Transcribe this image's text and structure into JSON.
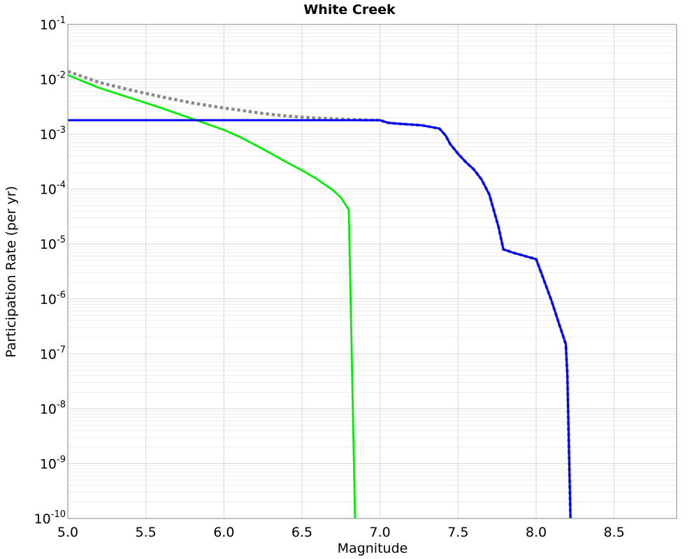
{
  "chart_data": {
    "type": "line",
    "title": "White Creek",
    "xlabel": "Magnitude",
    "ylabel": "Participation Rate (per yr)",
    "x_range": [
      5.0,
      8.9
    ],
    "y_scale": "log",
    "y_range": [
      1e-10,
      0.1
    ],
    "grid": {
      "x_major": true,
      "y_major": true,
      "y_minor": true,
      "legend": "none"
    },
    "x_ticks": [
      {
        "v": 5.0,
        "label": "5.0"
      },
      {
        "v": 5.5,
        "label": "5.5"
      },
      {
        "v": 6.0,
        "label": "6.0"
      },
      {
        "v": 6.5,
        "label": "6.5"
      },
      {
        "v": 7.0,
        "label": "7.0"
      },
      {
        "v": 7.5,
        "label": "7.5"
      },
      {
        "v": 8.0,
        "label": "8.0"
      },
      {
        "v": 8.5,
        "label": "8.5"
      }
    ],
    "y_ticks": [
      {
        "v": 0.1,
        "base": "10",
        "exp": "-1"
      },
      {
        "v": 0.01,
        "base": "10",
        "exp": "-2"
      },
      {
        "v": 0.001,
        "base": "10",
        "exp": "-3"
      },
      {
        "v": 0.0001,
        "base": "10",
        "exp": "-4"
      },
      {
        "v": 1e-05,
        "base": "10",
        "exp": "-5"
      },
      {
        "v": 1e-06,
        "base": "10",
        "exp": "-6"
      },
      {
        "v": 1e-07,
        "base": "10",
        "exp": "-7"
      },
      {
        "v": 1e-08,
        "base": "10",
        "exp": "-8"
      },
      {
        "v": 1e-09,
        "base": "10",
        "exp": "-9"
      },
      {
        "v": 1e-10,
        "base": "10",
        "exp": "-10"
      }
    ],
    "colors": {
      "gray_dotted": "#8c8c8c",
      "green_solid": "#00ee00",
      "blue_solid": "#0000ff",
      "grid_major": "#d7d7d7",
      "grid_minor": "#ececec",
      "plot_border": "#9a9a9a"
    },
    "series": [
      {
        "name": "gray-dotted-total-line",
        "color": "#8c8c8c",
        "line_style": "dotted",
        "line_width": 4.5,
        "points": [
          [
            5.0,
            0.014
          ],
          [
            5.2,
            0.0088
          ],
          [
            5.4,
            0.0064
          ],
          [
            5.6,
            0.0048
          ],
          [
            5.8,
            0.0037
          ],
          [
            6.0,
            0.003
          ],
          [
            6.1,
            0.00275
          ],
          [
            6.2,
            0.0025
          ],
          [
            6.3,
            0.0023
          ],
          [
            6.4,
            0.00215
          ],
          [
            6.5,
            0.00205
          ],
          [
            6.6,
            0.00197
          ],
          [
            6.7,
            0.00192
          ],
          [
            6.8,
            0.00186
          ],
          [
            6.9,
            0.00182
          ],
          [
            7.0,
            0.0018
          ],
          [
            7.05,
            0.00162
          ],
          [
            7.1,
            0.00157
          ],
          [
            7.27,
            0.00145
          ],
          [
            7.38,
            0.00127
          ],
          [
            7.42,
            0.00095
          ],
          [
            7.45,
            0.00066
          ],
          [
            7.5,
            0.00044
          ],
          [
            7.55,
            0.00031
          ],
          [
            7.6,
            0.00023
          ],
          [
            7.65,
            0.00015
          ],
          [
            7.7,
            8e-05
          ],
          [
            7.76,
            2e-05
          ],
          [
            7.79,
            8e-06
          ],
          [
            7.85,
            7e-06
          ],
          [
            7.95,
            5.8e-06
          ],
          [
            8.0,
            5.3e-06
          ],
          [
            8.05,
            2.2e-06
          ],
          [
            8.1,
            9e-07
          ],
          [
            8.15,
            3.3e-07
          ],
          [
            8.19,
            1.5e-07
          ],
          [
            8.2,
            4e-08
          ],
          [
            8.21,
            2e-09
          ],
          [
            8.22,
            1e-10
          ]
        ]
      },
      {
        "name": "green-solid-line",
        "color": "#00ee00",
        "line_style": "solid",
        "line_width": 2.8,
        "points": [
          [
            5.0,
            0.012
          ],
          [
            5.2,
            0.007
          ],
          [
            5.4,
            0.0046
          ],
          [
            5.6,
            0.003
          ],
          [
            5.8,
            0.0019
          ],
          [
            6.0,
            0.0012
          ],
          [
            6.1,
            0.0009
          ],
          [
            6.2,
            0.00064
          ],
          [
            6.3,
            0.00045
          ],
          [
            6.4,
            0.00031
          ],
          [
            6.5,
            0.00022
          ],
          [
            6.6,
            0.00015
          ],
          [
            6.7,
            9.5e-05
          ],
          [
            6.75,
            7e-05
          ],
          [
            6.8,
            4.2e-05
          ],
          [
            6.84,
            1e-10
          ]
        ]
      },
      {
        "name": "blue-solid-line",
        "color": "#0000ff",
        "line_style": "solid",
        "line_width": 3,
        "points": [
          [
            5.0,
            0.0018
          ],
          [
            7.0,
            0.0018
          ],
          [
            7.05,
            0.00162
          ],
          [
            7.1,
            0.00157
          ],
          [
            7.27,
            0.00145
          ],
          [
            7.38,
            0.00127
          ],
          [
            7.42,
            0.00095
          ],
          [
            7.45,
            0.00066
          ],
          [
            7.5,
            0.00044
          ],
          [
            7.55,
            0.00031
          ],
          [
            7.6,
            0.00023
          ],
          [
            7.65,
            0.00015
          ],
          [
            7.7,
            8e-05
          ],
          [
            7.76,
            2e-05
          ],
          [
            7.79,
            8e-06
          ],
          [
            7.85,
            7e-06
          ],
          [
            7.95,
            5.8e-06
          ],
          [
            8.0,
            5.3e-06
          ],
          [
            8.05,
            2.2e-06
          ],
          [
            8.1,
            9e-07
          ],
          [
            8.15,
            3.3e-07
          ],
          [
            8.19,
            1.5e-07
          ],
          [
            8.2,
            4e-08
          ],
          [
            8.21,
            2e-09
          ],
          [
            8.22,
            1e-10
          ]
        ]
      }
    ]
  }
}
